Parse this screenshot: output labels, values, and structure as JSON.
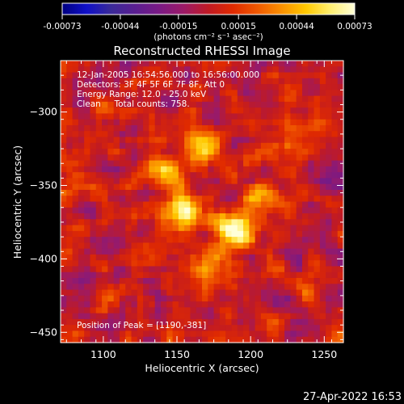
{
  "colors": {
    "background": "#000000",
    "foreground": "#ffffff",
    "colormap": [
      "#000080",
      "#1010c8",
      "#3a2a98",
      "#5a1e90",
      "#7a1a84",
      "#9c1a66",
      "#c01a24",
      "#e02a00",
      "#f05800",
      "#fa9000",
      "#ffc800",
      "#ffef70",
      "#ffffd8"
    ]
  },
  "colorbar": {
    "tick_labels": [
      "-0.00073",
      "-0.00044",
      "-0.00015",
      "0.00015",
      "0.00044",
      "0.00073"
    ],
    "tick_values": [
      -0.00073,
      -0.00044,
      -0.00015,
      0.00015,
      0.00044,
      0.00073
    ],
    "range": [
      -0.00073,
      0.00073
    ],
    "units_label": "(photons cm⁻² s⁻¹ asec⁻²)"
  },
  "info_lines": [
    "12-Jan-2005 16:54:56.000 to 16:56:00.000",
    "Detectors: 3F 4F 5F 6F 7F 8F, Att 0",
    "Energy Range: 12.0 - 25.0 keV",
    "Clean     Total counts: 758."
  ],
  "peak_label": "Position of Peak = [1190,-381]",
  "timestamp": "27-Apr-2022 16:53",
  "chart_data": {
    "type": "heatmap",
    "title": "Reconstructed RHESSI Image",
    "xlabel": "Heliocentric X (arcsec)",
    "ylabel": "Heliocentric Y (arcsec)",
    "xlim": [
      1071,
      1263
    ],
    "ylim": [
      -457,
      -265
    ],
    "xticks": [
      1100,
      1150,
      1200,
      1250
    ],
    "yticks": [
      -450,
      -400,
      -350,
      -300
    ],
    "xtick_labels": [
      "1100",
      "1150",
      "1200",
      "1250"
    ],
    "ytick_labels": [
      "−450",
      "−400",
      "−350",
      "−300"
    ],
    "zrange": [
      -0.00073,
      0.00073
    ],
    "peak": [
      1190,
      -381
    ],
    "sources": [
      {
        "x": 1154,
        "y": -368,
        "peak": 0.00073,
        "sigma": 9
      },
      {
        "x": 1190,
        "y": -381,
        "peak": 0.00073,
        "sigma": 9
      },
      {
        "x": 1168,
        "y": -325,
        "peak": 0.00055,
        "sigma": 9
      },
      {
        "x": 1140,
        "y": -340,
        "peak": 0.0005,
        "sigma": 8
      },
      {
        "x": 1208,
        "y": -360,
        "peak": 0.00048,
        "sigma": 8
      },
      {
        "x": 1175,
        "y": -405,
        "peak": 0.0004,
        "sigma": 10
      },
      {
        "x": 1212,
        "y": -330,
        "peak": 0.0003,
        "sigma": 7
      },
      {
        "x": 1105,
        "y": -425,
        "peak": 0.0002,
        "sigma": 6
      },
      {
        "x": 1240,
        "y": -425,
        "peak": 0.00022,
        "sigma": 7
      },
      {
        "x": 1100,
        "y": -295,
        "peak": 0.00018,
        "sigma": 6
      },
      {
        "x": 1248,
        "y": -300,
        "peak": 0.00015,
        "sigma": 6
      }
    ]
  }
}
